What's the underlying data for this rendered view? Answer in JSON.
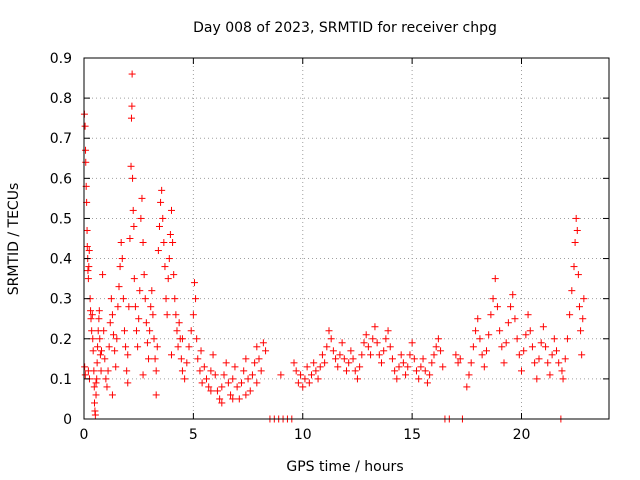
{
  "chart_data": {
    "type": "scatter",
    "title": "Day 008 of 2023, SRMTID for receiver chpg",
    "xlabel": "GPS time / hours",
    "ylabel": "SRMTID / TECUs",
    "xlim": [
      0,
      24
    ],
    "ylim": [
      0,
      0.9
    ],
    "xticks": [
      0,
      5,
      10,
      15,
      20
    ],
    "yticks": [
      0,
      0.1,
      0.2,
      0.3,
      0.4,
      0.5,
      0.6,
      0.7,
      0.8,
      0.9
    ],
    "grid": true,
    "marker": "+",
    "color": "#ff0000",
    "series": [
      {
        "name": "SRMTID",
        "points": [
          [
            0.02,
            0.76
          ],
          [
            0.05,
            0.73
          ],
          [
            0.07,
            0.67
          ],
          [
            0.08,
            0.64
          ],
          [
            0.1,
            0.58
          ],
          [
            0.12,
            0.54
          ],
          [
            0.14,
            0.47
          ],
          [
            0.15,
            0.43
          ],
          [
            0.17,
            0.4
          ],
          [
            0.18,
            0.37
          ],
          [
            0.2,
            0.35
          ],
          [
            0.22,
            0.38
          ],
          [
            0.24,
            0.42
          ],
          [
            0.03,
            0.13
          ],
          [
            0.06,
            0.11
          ],
          [
            0.28,
            0.3
          ],
          [
            0.3,
            0.27
          ],
          [
            0.32,
            0.25
          ],
          [
            0.35,
            0.22
          ],
          [
            0.38,
            0.26
          ],
          [
            0.4,
            0.2
          ],
          [
            0.42,
            0.17
          ],
          [
            0.45,
            0.12
          ],
          [
            0.47,
            0.08
          ],
          [
            0.48,
            0.04
          ],
          [
            0.5,
            0.02
          ],
          [
            0.52,
            0.01
          ],
          [
            0.55,
            0.06
          ],
          [
            0.58,
            0.1
          ],
          [
            0.6,
            0.14
          ],
          [
            0.62,
            0.18
          ],
          [
            0.65,
            0.22
          ],
          [
            0.68,
            0.25
          ],
          [
            0.7,
            0.27
          ],
          [
            0.72,
            0.2
          ],
          [
            0.75,
            0.16
          ],
          [
            0.78,
            0.12
          ],
          [
            0.8,
            0.17
          ],
          [
            0.85,
            0.36
          ],
          [
            0.9,
            0.22
          ],
          [
            0.95,
            0.15
          ],
          [
            1.0,
            0.1
          ],
          [
            1.05,
            0.08
          ],
          [
            1.1,
            0.12
          ],
          [
            1.15,
            0.18
          ],
          [
            1.2,
            0.24
          ],
          [
            1.25,
            0.3
          ],
          [
            1.3,
            0.26
          ],
          [
            1.35,
            0.21
          ],
          [
            1.4,
            0.17
          ],
          [
            1.45,
            0.13
          ],
          [
            1.5,
            0.2
          ],
          [
            1.55,
            0.28
          ],
          [
            1.6,
            0.33
          ],
          [
            1.65,
            0.38
          ],
          [
            1.7,
            0.44
          ],
          [
            1.75,
            0.4
          ],
          [
            1.8,
            0.3
          ],
          [
            1.85,
            0.22
          ],
          [
            1.9,
            0.18
          ],
          [
            1.95,
            0.12
          ],
          [
            2.0,
            0.16
          ],
          [
            2.05,
            0.28
          ],
          [
            2.1,
            0.45
          ],
          [
            2.15,
            0.63
          ],
          [
            2.17,
            0.75
          ],
          [
            2.19,
            0.78
          ],
          [
            2.2,
            0.86
          ],
          [
            2.22,
            0.6
          ],
          [
            2.25,
            0.52
          ],
          [
            2.28,
            0.48
          ],
          [
            2.3,
            0.35
          ],
          [
            2.35,
            0.28
          ],
          [
            2.4,
            0.22
          ],
          [
            2.45,
            0.18
          ],
          [
            2.5,
            0.25
          ],
          [
            2.55,
            0.32
          ],
          [
            2.6,
            0.5
          ],
          [
            2.65,
            0.55
          ],
          [
            2.7,
            0.44
          ],
          [
            2.75,
            0.36
          ],
          [
            2.8,
            0.3
          ],
          [
            2.85,
            0.24
          ],
          [
            2.9,
            0.19
          ],
          [
            2.95,
            0.15
          ],
          [
            3.0,
            0.22
          ],
          [
            3.05,
            0.28
          ],
          [
            3.1,
            0.32
          ],
          [
            3.15,
            0.26
          ],
          [
            3.2,
            0.2
          ],
          [
            3.25,
            0.15
          ],
          [
            3.3,
            0.12
          ],
          [
            3.35,
            0.18
          ],
          [
            3.4,
            0.42
          ],
          [
            3.45,
            0.48
          ],
          [
            3.5,
            0.54
          ],
          [
            3.55,
            0.57
          ],
          [
            3.6,
            0.5
          ],
          [
            3.65,
            0.44
          ],
          [
            3.7,
            0.38
          ],
          [
            3.75,
            0.3
          ],
          [
            3.8,
            0.26
          ],
          [
            3.85,
            0.35
          ],
          [
            3.9,
            0.4
          ],
          [
            3.95,
            0.46
          ],
          [
            4.0,
            0.52
          ],
          [
            4.05,
            0.44
          ],
          [
            4.1,
            0.36
          ],
          [
            4.15,
            0.3
          ],
          [
            4.2,
            0.26
          ],
          [
            4.25,
            0.22
          ],
          [
            4.3,
            0.18
          ],
          [
            4.35,
            0.24
          ],
          [
            4.4,
            0.2
          ],
          [
            4.45,
            0.15
          ],
          [
            4.5,
            0.12
          ],
          [
            4.6,
            0.1
          ],
          [
            4.7,
            0.14
          ],
          [
            4.8,
            0.18
          ],
          [
            4.9,
            0.22
          ],
          [
            5.0,
            0.26
          ],
          [
            5.05,
            0.34
          ],
          [
            5.1,
            0.3
          ],
          [
            5.15,
            0.2
          ],
          [
            5.2,
            0.15
          ],
          [
            5.3,
            0.12
          ],
          [
            5.4,
            0.09
          ],
          [
            5.5,
            0.13
          ],
          [
            5.6,
            0.1
          ],
          [
            5.7,
            0.08
          ],
          [
            5.8,
            0.12
          ],
          [
            5.9,
            0.16
          ],
          [
            6.0,
            0.11
          ],
          [
            6.1,
            0.07
          ],
          [
            6.2,
            0.05
          ],
          [
            6.3,
            0.08
          ],
          [
            6.4,
            0.11
          ],
          [
            6.5,
            0.14
          ],
          [
            6.6,
            0.09
          ],
          [
            6.7,
            0.06
          ],
          [
            6.8,
            0.1
          ],
          [
            6.9,
            0.13
          ],
          [
            7.0,
            0.08
          ],
          [
            7.1,
            0.05
          ],
          [
            7.2,
            0.09
          ],
          [
            7.3,
            0.12
          ],
          [
            7.4,
            0.15
          ],
          [
            7.5,
            0.1
          ],
          [
            7.6,
            0.07
          ],
          [
            7.7,
            0.11
          ],
          [
            7.8,
            0.14
          ],
          [
            7.9,
            0.18
          ],
          [
            8.0,
            0.15
          ],
          [
            8.1,
            0.12
          ],
          [
            8.2,
            0.19
          ],
          [
            8.3,
            0.17
          ],
          [
            0.2,
            0.12
          ],
          [
            0.25,
            0.1
          ],
          [
            0.55,
            0.09
          ],
          [
            1.3,
            0.06
          ],
          [
            2.0,
            0.09
          ],
          [
            2.7,
            0.11
          ],
          [
            3.3,
            0.06
          ],
          [
            4.0,
            0.16
          ],
          [
            4.5,
            0.2
          ],
          [
            5.35,
            0.17
          ],
          [
            5.8,
            0.07
          ],
          [
            6.3,
            0.04
          ],
          [
            6.8,
            0.05
          ],
          [
            7.4,
            0.06
          ],
          [
            7.9,
            0.09
          ],
          [
            8.5,
            0.0
          ],
          [
            8.7,
            0.0
          ],
          [
            8.9,
            0.0
          ],
          [
            9.1,
            0.0
          ],
          [
            9.3,
            0.0
          ],
          [
            9.5,
            0.0
          ],
          [
            9.0,
            0.11
          ],
          [
            9.6,
            0.14
          ],
          [
            9.7,
            0.12
          ],
          [
            9.8,
            0.09
          ],
          [
            9.9,
            0.11
          ],
          [
            10.0,
            0.08
          ],
          [
            10.1,
            0.1
          ],
          [
            10.2,
            0.13
          ],
          [
            10.3,
            0.09
          ],
          [
            10.4,
            0.11
          ],
          [
            10.5,
            0.14
          ],
          [
            10.6,
            0.12
          ],
          [
            10.7,
            0.1
          ],
          [
            10.8,
            0.13
          ],
          [
            10.9,
            0.16
          ],
          [
            11.0,
            0.14
          ],
          [
            11.1,
            0.18
          ],
          [
            11.2,
            0.22
          ],
          [
            11.3,
            0.2
          ],
          [
            11.4,
            0.17
          ],
          [
            11.5,
            0.15
          ],
          [
            11.6,
            0.13
          ],
          [
            11.7,
            0.16
          ],
          [
            11.8,
            0.19
          ],
          [
            11.9,
            0.15
          ],
          [
            12.0,
            0.12
          ],
          [
            12.1,
            0.14
          ],
          [
            12.2,
            0.17
          ],
          [
            12.3,
            0.15
          ],
          [
            12.4,
            0.12
          ],
          [
            12.5,
            0.1
          ],
          [
            12.6,
            0.13
          ],
          [
            12.7,
            0.16
          ],
          [
            12.8,
            0.19
          ],
          [
            12.9,
            0.21
          ],
          [
            13.0,
            0.18
          ],
          [
            13.1,
            0.16
          ],
          [
            13.2,
            0.2
          ],
          [
            13.3,
            0.23
          ],
          [
            13.4,
            0.19
          ],
          [
            13.5,
            0.16
          ],
          [
            13.6,
            0.14
          ],
          [
            13.7,
            0.17
          ],
          [
            13.8,
            0.2
          ],
          [
            13.9,
            0.22
          ],
          [
            14.0,
            0.18
          ],
          [
            14.1,
            0.15
          ],
          [
            14.2,
            0.12
          ],
          [
            14.3,
            0.1
          ],
          [
            14.4,
            0.13
          ],
          [
            14.5,
            0.16
          ],
          [
            14.6,
            0.14
          ],
          [
            14.7,
            0.11
          ],
          [
            14.8,
            0.13
          ],
          [
            14.9,
            0.16
          ],
          [
            15.0,
            0.19
          ],
          [
            15.1,
            0.15
          ],
          [
            15.2,
            0.12
          ],
          [
            15.3,
            0.1
          ],
          [
            15.4,
            0.13
          ],
          [
            15.5,
            0.15
          ],
          [
            15.6,
            0.12
          ],
          [
            15.7,
            0.09
          ],
          [
            15.8,
            0.11
          ],
          [
            15.9,
            0.14
          ],
          [
            16.0,
            0.16
          ],
          [
            16.1,
            0.18
          ],
          [
            16.2,
            0.2
          ],
          [
            16.3,
            0.17
          ],
          [
            16.4,
            0.13
          ],
          [
            16.5,
            0.0
          ],
          [
            16.7,
            0.0
          ],
          [
            17.0,
            0.16
          ],
          [
            17.1,
            0.14
          ],
          [
            17.2,
            0.15
          ],
          [
            17.3,
            0.0
          ],
          [
            17.5,
            0.08
          ],
          [
            17.6,
            0.11
          ],
          [
            17.7,
            0.14
          ],
          [
            17.8,
            0.18
          ],
          [
            17.9,
            0.22
          ],
          [
            18.0,
            0.25
          ],
          [
            18.1,
            0.2
          ],
          [
            18.2,
            0.16
          ],
          [
            18.3,
            0.13
          ],
          [
            18.4,
            0.17
          ],
          [
            18.5,
            0.21
          ],
          [
            18.6,
            0.26
          ],
          [
            18.7,
            0.3
          ],
          [
            18.8,
            0.35
          ],
          [
            18.9,
            0.28
          ],
          [
            19.0,
            0.22
          ],
          [
            19.1,
            0.18
          ],
          [
            19.2,
            0.14
          ],
          [
            19.3,
            0.19
          ],
          [
            19.4,
            0.24
          ],
          [
            19.5,
            0.28
          ],
          [
            19.6,
            0.31
          ],
          [
            19.7,
            0.25
          ],
          [
            19.8,
            0.2
          ],
          [
            19.9,
            0.16
          ],
          [
            20.0,
            0.12
          ],
          [
            20.1,
            0.17
          ],
          [
            20.2,
            0.21
          ],
          [
            20.3,
            0.26
          ],
          [
            20.4,
            0.22
          ],
          [
            20.5,
            0.18
          ],
          [
            20.6,
            0.14
          ],
          [
            20.7,
            0.1
          ],
          [
            20.8,
            0.15
          ],
          [
            20.9,
            0.19
          ],
          [
            21.0,
            0.23
          ],
          [
            21.1,
            0.18
          ],
          [
            21.2,
            0.14
          ],
          [
            21.3,
            0.11
          ],
          [
            21.4,
            0.16
          ],
          [
            21.5,
            0.2
          ],
          [
            21.6,
            0.17
          ],
          [
            21.7,
            0.14
          ],
          [
            21.8,
            0.0
          ],
          [
            21.85,
            0.12
          ],
          [
            21.9,
            0.1
          ],
          [
            22.0,
            0.15
          ],
          [
            22.1,
            0.2
          ],
          [
            22.2,
            0.26
          ],
          [
            22.3,
            0.32
          ],
          [
            22.4,
            0.38
          ],
          [
            22.45,
            0.44
          ],
          [
            22.5,
            0.5
          ],
          [
            22.55,
            0.47
          ],
          [
            22.6,
            0.36
          ],
          [
            22.65,
            0.28
          ],
          [
            22.7,
            0.22
          ],
          [
            22.75,
            0.16
          ],
          [
            22.8,
            0.25
          ],
          [
            22.85,
            0.3
          ]
        ]
      }
    ]
  }
}
